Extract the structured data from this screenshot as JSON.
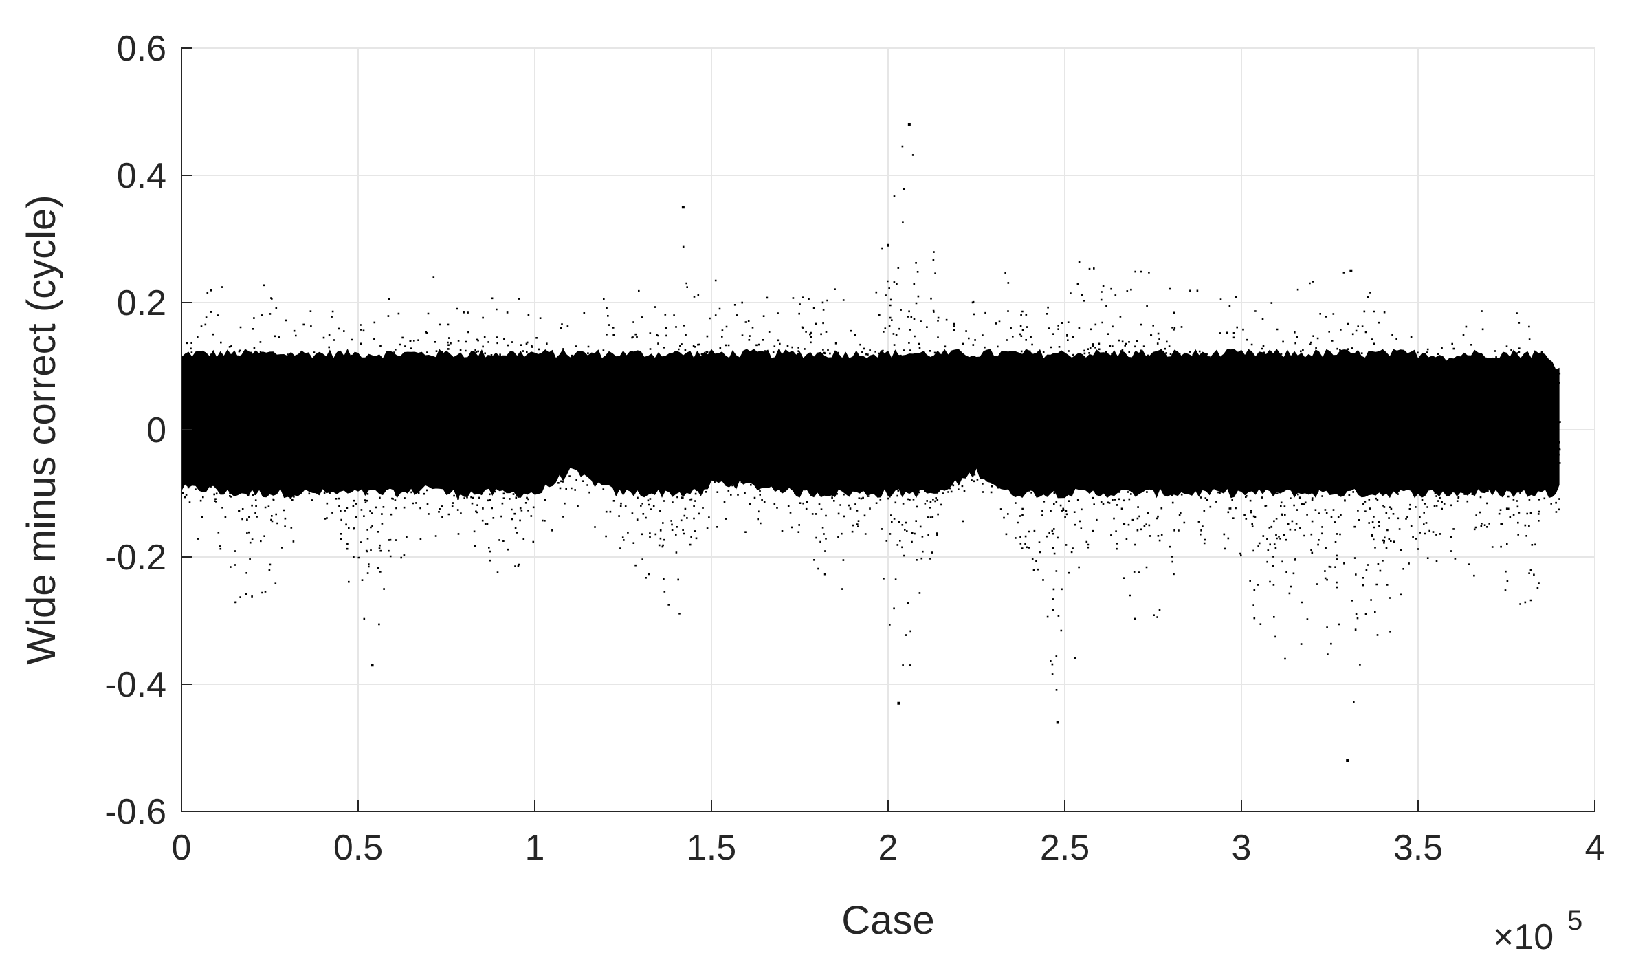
{
  "chart_data": {
    "type": "scatter",
    "title": "",
    "xlabel": "Case",
    "ylabel": "Wide minus correct (cycle)",
    "x_multiplier_label": {
      "prefix": "×10",
      "exponent": "5"
    },
    "xlim": [
      0,
      400000
    ],
    "ylim": [
      -0.6,
      0.6
    ],
    "x_ticks": [
      0,
      50000,
      100000,
      150000,
      200000,
      250000,
      300000,
      350000,
      400000
    ],
    "x_tick_labels": [
      "0",
      "0.5",
      "1",
      "1.5",
      "2",
      "2.5",
      "3",
      "3.5",
      "4"
    ],
    "y_ticks": [
      -0.6,
      -0.4,
      -0.2,
      0,
      0.2,
      0.4,
      0.6
    ],
    "y_tick_labels": [
      "-0.6",
      "-0.4",
      "-0.2",
      "0",
      "0.2",
      "0.4",
      "0.6"
    ],
    "grid": true,
    "marker_color": "#000000",
    "series": [
      {
        "x_range": [
          0,
          390000
        ],
        "dense_band": [
          -0.1,
          0.12
        ],
        "envelope": [
          {
            "x": 0,
            "high": 0.16,
            "low": -0.17
          },
          {
            "x": 10000,
            "high": 0.24,
            "low": -0.17
          },
          {
            "x": 15000,
            "high": 0.18,
            "low": -0.27
          },
          {
            "x": 25000,
            "high": 0.24,
            "low": -0.25
          },
          {
            "x": 35000,
            "high": 0.2,
            "low": -0.18
          },
          {
            "x": 45000,
            "high": 0.22,
            "low": -0.21
          },
          {
            "x": 54000,
            "high": 0.23,
            "low": -0.33
          },
          {
            "x": 65000,
            "high": 0.18,
            "low": -0.18
          },
          {
            "x": 70000,
            "high": 0.24,
            "low": -0.16
          },
          {
            "x": 85000,
            "high": 0.25,
            "low": -0.23
          },
          {
            "x": 97000,
            "high": 0.2,
            "low": -0.21
          },
          {
            "x": 110000,
            "high": 0.17,
            "low": -0.12
          },
          {
            "x": 125000,
            "high": 0.23,
            "low": -0.19
          },
          {
            "x": 137000,
            "high": 0.2,
            "low": -0.27
          },
          {
            "x": 142000,
            "high": 0.35,
            "low": -0.3
          },
          {
            "x": 150000,
            "high": 0.24,
            "low": -0.15
          },
          {
            "x": 170000,
            "high": 0.2,
            "low": -0.17
          },
          {
            "x": 187000,
            "high": 0.25,
            "low": -0.25
          },
          {
            "x": 195000,
            "high": 0.2,
            "low": -0.2
          },
          {
            "x": 205000,
            "high": 0.48,
            "low": -0.43
          },
          {
            "x": 215000,
            "high": 0.22,
            "low": -0.18
          },
          {
            "x": 225000,
            "high": 0.2,
            "low": -0.12
          },
          {
            "x": 235000,
            "high": 0.26,
            "low": -0.19
          },
          {
            "x": 242000,
            "high": 0.2,
            "low": -0.3
          },
          {
            "x": 248000,
            "high": 0.28,
            "low": -0.46
          },
          {
            "x": 260000,
            "high": 0.25,
            "low": -0.2
          },
          {
            "x": 273000,
            "high": 0.25,
            "low": -0.36
          },
          {
            "x": 285000,
            "high": 0.22,
            "low": -0.2
          },
          {
            "x": 300000,
            "high": 0.22,
            "low": -0.22
          },
          {
            "x": 308000,
            "high": 0.2,
            "low": -0.41
          },
          {
            "x": 322000,
            "high": 0.24,
            "low": -0.29
          },
          {
            "x": 330000,
            "high": 0.25,
            "low": -0.52
          },
          {
            "x": 345000,
            "high": 0.2,
            "low": -0.27
          },
          {
            "x": 360000,
            "high": 0.16,
            "low": -0.2
          },
          {
            "x": 368000,
            "high": 0.2,
            "low": -0.24
          },
          {
            "x": 375000,
            "high": 0.19,
            "low": -0.28
          },
          {
            "x": 385000,
            "high": 0.17,
            "low": -0.26
          },
          {
            "x": 390000,
            "high": 0.14,
            "low": -0.15
          }
        ],
        "outliers": [
          {
            "x": 54000,
            "y": -0.37
          },
          {
            "x": 142000,
            "y": 0.35
          },
          {
            "x": 200000,
            "y": 0.29
          },
          {
            "x": 203000,
            "y": -0.43
          },
          {
            "x": 206000,
            "y": 0.48
          },
          {
            "x": 248000,
            "y": -0.46
          },
          {
            "x": 330000,
            "y": -0.52
          },
          {
            "x": 331000,
            "y": 0.25
          }
        ]
      }
    ]
  }
}
